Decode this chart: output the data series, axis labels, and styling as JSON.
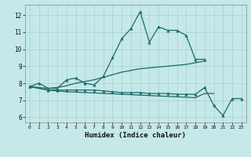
{
  "xlabel": "Humidex (Indice chaleur)",
  "background_color": "#c5e8e8",
  "grid_color": "#a8d0d0",
  "line_color": "#1a6b6b",
  "x_ticks": [
    0,
    1,
    2,
    3,
    4,
    5,
    6,
    7,
    8,
    9,
    10,
    11,
    12,
    13,
    14,
    15,
    16,
    17,
    18,
    19,
    20,
    21,
    22,
    23
  ],
  "y_ticks": [
    6,
    7,
    8,
    9,
    10,
    11,
    12
  ],
  "ylim": [
    5.7,
    12.6
  ],
  "xlim": [
    -0.5,
    23.5
  ],
  "series": [
    {
      "x": [
        0,
        1,
        2,
        3,
        4,
        5,
        6,
        7,
        8,
        9,
        10,
        11,
        12,
        13,
        14,
        15,
        16,
        17,
        18,
        19
      ],
      "y": [
        7.8,
        8.0,
        7.7,
        7.7,
        8.2,
        8.3,
        8.0,
        7.9,
        8.4,
        9.5,
        10.6,
        11.2,
        12.2,
        10.4,
        11.3,
        11.1,
        11.1,
        10.8,
        9.4,
        9.4
      ],
      "marker": true,
      "lw": 0.9
    },
    {
      "x": [
        0,
        2,
        3,
        4,
        5,
        6,
        7,
        8,
        9,
        10,
        11,
        12,
        13,
        14,
        15,
        16,
        17,
        18,
        19
      ],
      "y": [
        7.8,
        7.7,
        7.75,
        7.85,
        8.0,
        8.1,
        8.2,
        8.35,
        8.5,
        8.65,
        8.75,
        8.85,
        8.9,
        8.95,
        9.0,
        9.05,
        9.1,
        9.2,
        9.3
      ],
      "marker": false,
      "lw": 0.9
    },
    {
      "x": [
        0,
        2,
        3,
        4,
        5,
        6,
        7,
        8,
        9,
        10,
        11,
        12,
        13,
        14,
        15,
        16,
        17,
        18,
        19,
        20,
        21,
        22,
        23
      ],
      "y": [
        7.8,
        7.6,
        7.6,
        7.6,
        7.6,
        7.6,
        7.6,
        7.55,
        7.5,
        7.45,
        7.45,
        7.45,
        7.4,
        7.4,
        7.4,
        7.35,
        7.35,
        7.35,
        7.75,
        6.7,
        6.1,
        7.1,
        7.1
      ],
      "marker": true,
      "lw": 0.9
    },
    {
      "x": [
        0,
        2,
        3,
        4,
        5,
        6,
        7,
        8,
        9,
        10,
        11,
        12,
        13,
        14,
        15,
        16,
        17,
        18,
        19,
        20
      ],
      "y": [
        7.8,
        7.6,
        7.55,
        7.5,
        7.48,
        7.45,
        7.43,
        7.4,
        7.38,
        7.35,
        7.33,
        7.3,
        7.28,
        7.25,
        7.23,
        7.2,
        7.18,
        7.15,
        7.4,
        7.4
      ],
      "marker": false,
      "lw": 0.9
    }
  ]
}
